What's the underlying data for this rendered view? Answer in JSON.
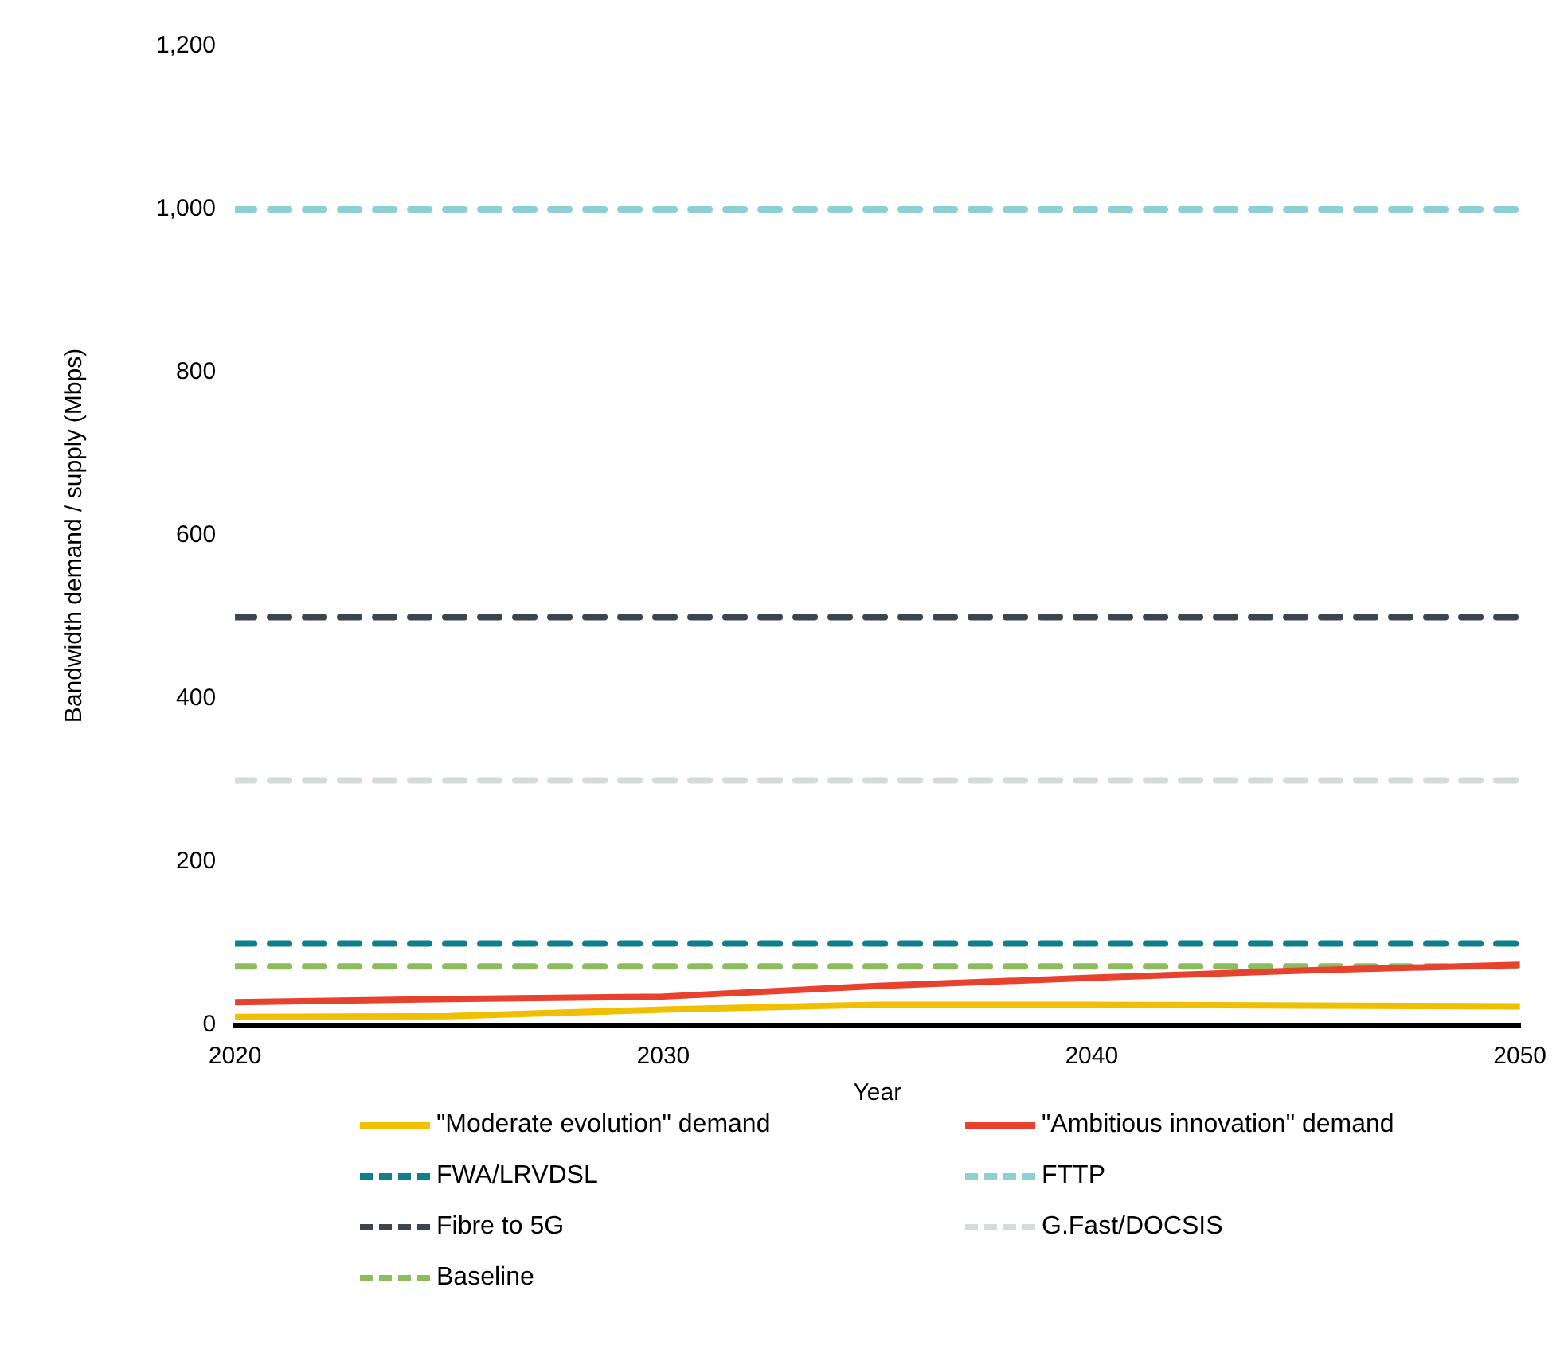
{
  "chart_data": {
    "type": "line",
    "xlabel": "Year",
    "ylabel": "Bandwidth demand / supply (Mbps)",
    "xlim": [
      2020,
      2050
    ],
    "xticks": [
      2020,
      2030,
      2040,
      2050
    ],
    "ylim": [
      0,
      1200
    ],
    "yticks": [
      0,
      200,
      400,
      600,
      800,
      {
        "value": 1000,
        "label": "1,000"
      },
      {
        "value": 1200,
        "label": "1,200"
      }
    ],
    "grid": false,
    "legend": "bottom",
    "marker": "none",
    "series": [
      {
        "name": "\"Moderate evolution\" demand",
        "color": "#f0c000",
        "line_style": "solid",
        "x": [
          2020,
          2025,
          2030,
          2035,
          2040,
          2045,
          2050
        ],
        "values": [
          10,
          11,
          19,
          25,
          25,
          24,
          23
        ]
      },
      {
        "name": "\"Ambitious innovation\" demand",
        "color": "#e8412e",
        "line_style": "solid",
        "x": [
          2020,
          2025,
          2030,
          2035,
          2040,
          2045,
          2050
        ],
        "values": [
          28,
          32,
          35,
          48,
          58,
          67,
          74
        ]
      },
      {
        "name": "FWA/LRVDSL",
        "color": "#0f7f8c",
        "line_style": "dashed",
        "x": [
          2020,
          2050
        ],
        "values": [
          100,
          100
        ]
      },
      {
        "name": "FTTP",
        "color": "#8dd0d4",
        "line_style": "dashed",
        "x": [
          2020,
          2050
        ],
        "values": [
          1000,
          1000
        ]
      },
      {
        "name": "Fibre to 5G",
        "color": "#3b4550",
        "line_style": "dashed",
        "x": [
          2020,
          2050
        ],
        "values": [
          500,
          500
        ]
      },
      {
        "name": "G.Fast/DOCSIS",
        "color": "#d3dcd6",
        "line_style": "dashed",
        "x": [
          2020,
          2050
        ],
        "values": [
          300,
          300
        ]
      },
      {
        "name": "Baseline",
        "color": "#8cbd5c",
        "line_style": "dashed",
        "x": [
          2020,
          2050
        ],
        "values": [
          72,
          72
        ]
      }
    ]
  }
}
